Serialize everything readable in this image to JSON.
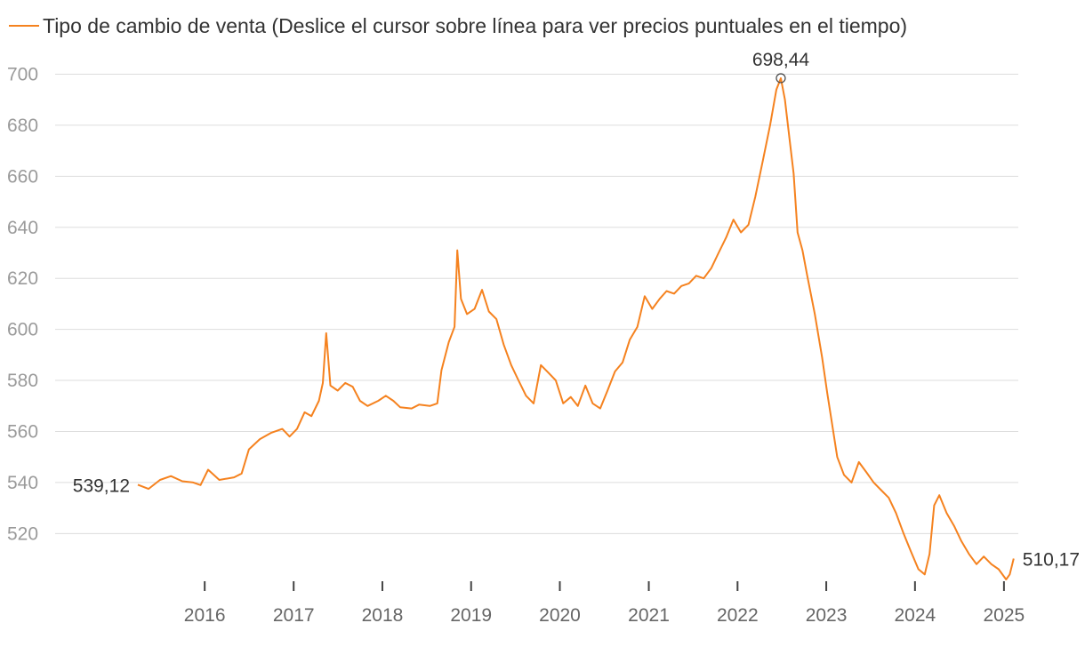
{
  "legend": {
    "label": "Tipo de cambio de venta (Deslice el cursor sobre línea para ver precios puntuales en el tiempo)"
  },
  "colors": {
    "line": "#f5821f",
    "grid": "#dddddd",
    "axis": "#444444"
  },
  "chart_data": {
    "type": "line",
    "title": "",
    "xlabel": "",
    "ylabel": "",
    "series": [
      {
        "name": "Tipo de cambio de venta",
        "points": [
          [
            "2015-04-01",
            539.12
          ],
          [
            "2015-05-15",
            537.5
          ],
          [
            "2015-07-01",
            541.0
          ],
          [
            "2015-08-15",
            542.5
          ],
          [
            "2015-10-01",
            540.5
          ],
          [
            "2015-11-15",
            540.0
          ],
          [
            "2015-12-15",
            539.0
          ],
          [
            "2016-01-15",
            545.0
          ],
          [
            "2016-03-01",
            541.0
          ],
          [
            "2016-05-01",
            542.0
          ],
          [
            "2016-06-01",
            543.5
          ],
          [
            "2016-07-01",
            553.0
          ],
          [
            "2016-08-15",
            557.0
          ],
          [
            "2016-10-01",
            559.5
          ],
          [
            "2016-11-15",
            561.0
          ],
          [
            "2016-12-15",
            558.0
          ],
          [
            "2017-01-15",
            561.0
          ],
          [
            "2017-02-15",
            567.5
          ],
          [
            "2017-03-15",
            566.0
          ],
          [
            "2017-04-15",
            572.0
          ],
          [
            "2017-05-01",
            579.0
          ],
          [
            "2017-05-15",
            598.5
          ],
          [
            "2017-06-01",
            578.0
          ],
          [
            "2017-07-01",
            576.0
          ],
          [
            "2017-08-01",
            579.0
          ],
          [
            "2017-09-01",
            577.5
          ],
          [
            "2017-10-01",
            572.0
          ],
          [
            "2017-11-01",
            570.0
          ],
          [
            "2017-12-15",
            572.0
          ],
          [
            "2018-01-15",
            574.0
          ],
          [
            "2018-02-15",
            572.0
          ],
          [
            "2018-03-15",
            569.5
          ],
          [
            "2018-05-01",
            569.0
          ],
          [
            "2018-06-01",
            570.5
          ],
          [
            "2018-07-15",
            570.0
          ],
          [
            "2018-08-15",
            571.0
          ],
          [
            "2018-09-01",
            584.0
          ],
          [
            "2018-10-01",
            595.0
          ],
          [
            "2018-10-25",
            601.0
          ],
          [
            "2018-11-05",
            631.0
          ],
          [
            "2018-11-20",
            612.0
          ],
          [
            "2018-12-15",
            606.0
          ],
          [
            "2019-01-15",
            608.0
          ],
          [
            "2019-02-15",
            615.5
          ],
          [
            "2019-03-15",
            607.0
          ],
          [
            "2019-04-15",
            604.0
          ],
          [
            "2019-05-15",
            594.0
          ],
          [
            "2019-06-15",
            586.0
          ],
          [
            "2019-07-15",
            580.0
          ],
          [
            "2019-08-15",
            574.0
          ],
          [
            "2019-09-15",
            571.0
          ],
          [
            "2019-10-15",
            586.0
          ],
          [
            "2019-11-15",
            583.0
          ],
          [
            "2019-12-15",
            580.0
          ],
          [
            "2020-01-15",
            571.0
          ],
          [
            "2020-02-15",
            573.5
          ],
          [
            "2020-03-15",
            570.0
          ],
          [
            "2020-04-15",
            578.0
          ],
          [
            "2020-05-15",
            571.0
          ],
          [
            "2020-06-15",
            569.0
          ],
          [
            "2020-07-15",
            576.0
          ],
          [
            "2020-08-15",
            583.5
          ],
          [
            "2020-09-15",
            587.0
          ],
          [
            "2020-10-15",
            596.0
          ],
          [
            "2020-11-15",
            601.0
          ],
          [
            "2020-12-15",
            613.0
          ],
          [
            "2021-01-15",
            608.0
          ],
          [
            "2021-02-15",
            612.0
          ],
          [
            "2021-03-15",
            615.0
          ],
          [
            "2021-04-15",
            614.0
          ],
          [
            "2021-05-15",
            617.0
          ],
          [
            "2021-06-15",
            618.0
          ],
          [
            "2021-07-15",
            621.0
          ],
          [
            "2021-08-15",
            620.0
          ],
          [
            "2021-09-15",
            624.0
          ],
          [
            "2021-10-15",
            630.0
          ],
          [
            "2021-11-15",
            636.0
          ],
          [
            "2021-12-15",
            643.0
          ],
          [
            "2022-01-15",
            638.0
          ],
          [
            "2022-02-15",
            641.0
          ],
          [
            "2022-03-15",
            652.0
          ],
          [
            "2022-04-15",
            666.0
          ],
          [
            "2022-05-15",
            680.0
          ],
          [
            "2022-06-10",
            694.0
          ],
          [
            "2022-06-28",
            698.44
          ],
          [
            "2022-07-15",
            690.0
          ],
          [
            "2022-08-01",
            676.0
          ],
          [
            "2022-08-20",
            661.0
          ],
          [
            "2022-09-05",
            638.0
          ],
          [
            "2022-09-25",
            631.0
          ],
          [
            "2022-10-15",
            621.0
          ],
          [
            "2022-11-15",
            606.0
          ],
          [
            "2022-12-15",
            589.0
          ],
          [
            "2023-01-05",
            575.0
          ],
          [
            "2023-01-25",
            563.0
          ],
          [
            "2023-02-15",
            550.0
          ],
          [
            "2023-03-15",
            543.0
          ],
          [
            "2023-04-15",
            540.0
          ],
          [
            "2023-05-15",
            548.0
          ],
          [
            "2023-06-15",
            544.0
          ],
          [
            "2023-07-15",
            540.0
          ],
          [
            "2023-08-15",
            537.0
          ],
          [
            "2023-09-15",
            534.0
          ],
          [
            "2023-10-15",
            528.0
          ],
          [
            "2023-11-15",
            520.0
          ],
          [
            "2023-12-15",
            513.0
          ],
          [
            "2024-01-15",
            506.0
          ],
          [
            "2024-02-10",
            504.0
          ],
          [
            "2024-03-01",
            512.0
          ],
          [
            "2024-03-20",
            531.0
          ],
          [
            "2024-04-10",
            535.0
          ],
          [
            "2024-05-10",
            528.0
          ],
          [
            "2024-06-10",
            523.0
          ],
          [
            "2024-07-10",
            517.0
          ],
          [
            "2024-08-10",
            512.0
          ],
          [
            "2024-09-10",
            508.0
          ],
          [
            "2024-10-10",
            511.0
          ],
          [
            "2024-11-10",
            508.0
          ],
          [
            "2024-12-10",
            506.0
          ],
          [
            "2025-01-10",
            502.0
          ],
          [
            "2025-01-25",
            504.0
          ],
          [
            "2025-02-10",
            510.17
          ]
        ]
      }
    ],
    "x_ticks": [
      "2016",
      "2017",
      "2018",
      "2019",
      "2020",
      "2021",
      "2022",
      "2023",
      "2024",
      "2025"
    ],
    "y_ticks": [
      520,
      540,
      560,
      580,
      600,
      620,
      640,
      660,
      680,
      700
    ],
    "x_range": [
      "2015-04-01",
      "2025-03-01"
    ],
    "y_range": [
      502,
      704
    ],
    "grid": true,
    "annotations": [
      {
        "kind": "start",
        "label": "539,12",
        "date": "2015-04-01",
        "value": 539.12
      },
      {
        "kind": "max",
        "label": "698,44",
        "date": "2022-06-28",
        "value": 698.44
      },
      {
        "kind": "end",
        "label": "510,17",
        "date": "2025-02-10",
        "value": 510.17
      }
    ]
  }
}
